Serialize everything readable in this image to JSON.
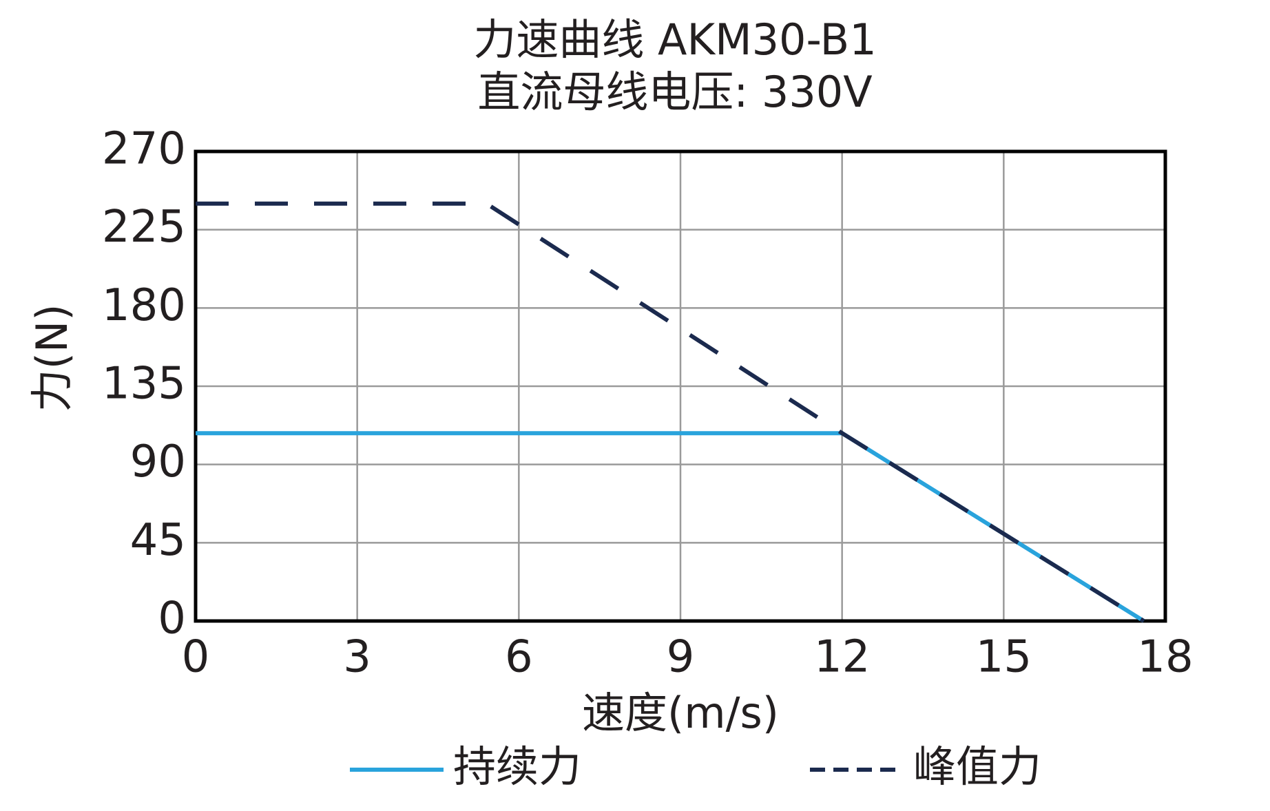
{
  "chart_data": {
    "type": "line",
    "title": "力速曲线 AKM30-B1",
    "subtitle": "直流母线电压: 330V",
    "x_label": "速度(m/s)",
    "y_label": "力(N)",
    "xlim": [
      0,
      18
    ],
    "xticks": [
      0,
      3,
      6,
      9,
      12,
      15,
      18
    ],
    "ylim": [
      0,
      270
    ],
    "yticks": [
      0,
      45,
      90,
      135,
      180,
      225,
      270
    ],
    "grid": true,
    "legend": "bottom",
    "series": [
      {
        "name": "持续力",
        "color": "#29a3dc",
        "dashed": false,
        "x": [
          0,
          12,
          17.6
        ],
        "values": [
          108,
          108,
          0
        ]
      },
      {
        "name": "峰值力",
        "color": "#1b2a4e",
        "dashed": true,
        "x": [
          0,
          5.4,
          12,
          17.6
        ],
        "values": [
          240,
          240,
          108,
          0
        ]
      }
    ]
  }
}
